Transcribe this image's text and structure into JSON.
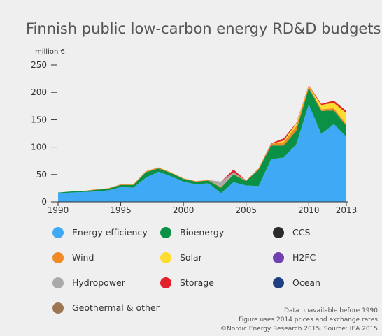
{
  "chart_data": {
    "type": "stacked-area",
    "title": "Finnish public low-carbon energy RD&D budgets",
    "y_label": "million €",
    "x": [
      1990,
      1991,
      1992,
      1993,
      1994,
      1995,
      1996,
      1997,
      1998,
      1999,
      2000,
      2001,
      2002,
      2003,
      2004,
      2005,
      2006,
      2007,
      2008,
      2009,
      2010,
      2011,
      2012,
      2013
    ],
    "xlim": [
      1990,
      2013
    ],
    "xticks": [
      1990,
      1995,
      2000,
      2005,
      2010,
      2013
    ],
    "ylim": [
      0,
      250
    ],
    "yticks": [
      0,
      50,
      100,
      150,
      200,
      250
    ],
    "series": [
      {
        "name": "Energy efficiency",
        "color": "#3fa9f5",
        "values": [
          15,
          17,
          18,
          19,
          21,
          27,
          26,
          44,
          55,
          47,
          37,
          32,
          34,
          16,
          36,
          30,
          29,
          78,
          81,
          105,
          178,
          124,
          142,
          119
        ]
      },
      {
        "name": "Bioenergy",
        "color": "#0a9146",
        "values": [
          2,
          2,
          2,
          3,
          3,
          4,
          5,
          10,
          6,
          6,
          5,
          5,
          5,
          10,
          14,
          8,
          30,
          25,
          22,
          25,
          30,
          42,
          25,
          20
        ]
      },
      {
        "name": "CCS",
        "color": "#2b2b2b",
        "values": [
          0,
          0,
          0,
          0,
          0,
          0,
          0,
          0,
          0,
          0,
          0,
          0,
          0,
          0,
          0,
          0,
          0,
          0,
          0,
          0,
          0,
          0,
          0,
          0
        ]
      },
      {
        "name": "Wind",
        "color": "#f08a24",
        "values": [
          0,
          0,
          0,
          1,
          1,
          1,
          1,
          2,
          2,
          1,
          1,
          1,
          1,
          1,
          1,
          1,
          2,
          3,
          6,
          8,
          3,
          3,
          4,
          3
        ]
      },
      {
        "name": "Solar",
        "color": "#fddc32",
        "values": [
          0,
          0,
          0,
          0,
          0,
          0,
          0,
          0,
          0,
          0,
          0,
          0,
          0,
          0,
          0,
          0,
          0,
          0,
          3,
          5,
          1,
          8,
          10,
          20
        ]
      },
      {
        "name": "H2FC",
        "color": "#7040b0",
        "values": [
          0,
          0,
          0,
          0,
          0,
          0,
          0,
          0,
          0,
          0,
          0,
          0,
          0,
          0,
          0,
          0,
          0,
          0,
          0,
          0,
          0,
          0,
          0,
          0
        ]
      },
      {
        "name": "Hydropower",
        "color": "#aaaaaa",
        "values": [
          0,
          0,
          0,
          0,
          0,
          0,
          0,
          0,
          0,
          0,
          0,
          0,
          0,
          10,
          3,
          0,
          0,
          0,
          0,
          0,
          0,
          0,
          0,
          0
        ]
      },
      {
        "name": "Storage",
        "color": "#e2222a",
        "values": [
          0,
          0,
          0,
          0,
          0,
          0,
          0,
          0,
          0,
          0,
          0,
          0,
          0,
          0,
          5,
          0,
          0,
          1,
          4,
          1,
          1,
          2,
          4,
          4
        ]
      },
      {
        "name": "Ocean",
        "color": "#1f3f80",
        "values": [
          0,
          0,
          0,
          0,
          0,
          0,
          0,
          0,
          0,
          0,
          0,
          0,
          0,
          0,
          0,
          0,
          0,
          0,
          0,
          0,
          0,
          0,
          0,
          0
        ]
      },
      {
        "name": "Geothermal & other",
        "color": "#9e7552",
        "values": [
          0,
          0,
          0,
          0,
          0,
          0,
          0,
          0,
          0,
          0,
          0,
          0,
          0,
          0,
          0,
          0,
          0,
          0,
          0,
          0,
          0,
          0,
          0,
          0
        ]
      }
    ],
    "notes": [
      "Data unavailable before 1990",
      "Figure uses 2014 prices and exchange rates",
      "©Nordic Energy Research 2015. Source: IEA 2015"
    ]
  }
}
